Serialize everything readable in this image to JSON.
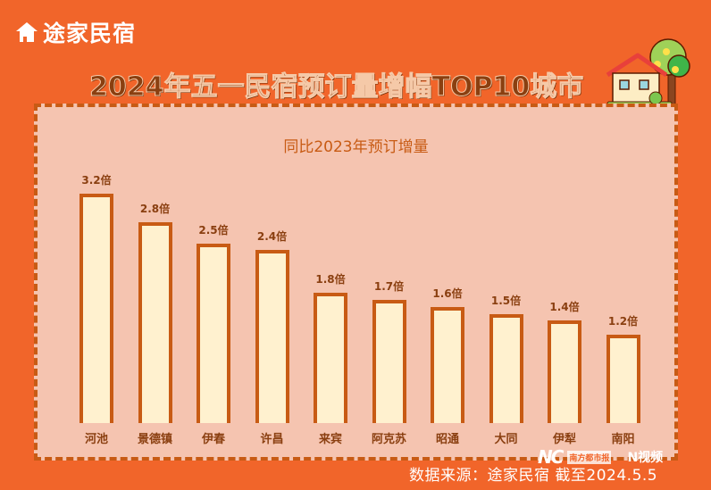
{
  "brand": {
    "name": "途家民宿",
    "icon": "house-logo-icon"
  },
  "title": "2024年五一民宿预订量增幅TOP10城市",
  "subtitle": "同比2023年预订增量",
  "source": "数据来源：途家民宿 截至2024.5.5",
  "watermark": {
    "nd": "NC",
    "nd_sub": "南方都市报",
    "video": "N视频"
  },
  "colors": {
    "background": "#f1652a",
    "panel": "#f5c4b0",
    "bar_fill": "#fff1cf",
    "bar_border": "#c85b14",
    "label": "#8a3f10"
  },
  "chart_data": {
    "type": "bar",
    "title": "2024年五一民宿预订量增幅TOP10城市",
    "subtitle": "同比2023年预订增量",
    "xlabel": "",
    "ylabel": "",
    "unit": "倍",
    "grid": false,
    "legend": "none",
    "categories": [
      "河池",
      "景德镇",
      "伊春",
      "许昌",
      "来宾",
      "阿克苏",
      "昭通",
      "大同",
      "伊犁",
      "南阳"
    ],
    "values": [
      3.2,
      2.8,
      2.5,
      2.4,
      1.8,
      1.7,
      1.6,
      1.5,
      1.4,
      1.2
    ],
    "labels": [
      "3.2倍",
      "2.8倍",
      "2.5倍",
      "2.4倍",
      "1.8倍",
      "1.7倍",
      "1.6倍",
      "1.5倍",
      "1.4倍",
      "1.2倍"
    ]
  }
}
